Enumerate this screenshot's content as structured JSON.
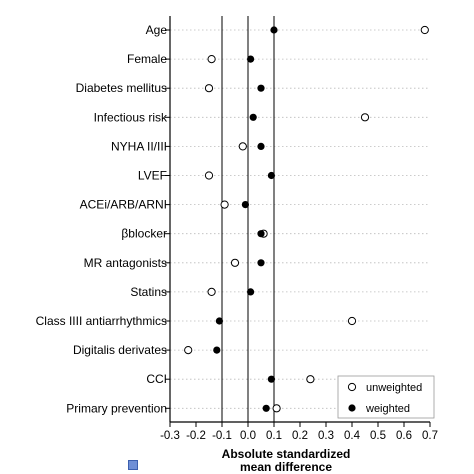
{
  "chart_data": {
    "type": "scatter",
    "categories": [
      "Age",
      "Female",
      "Diabetes mellitus",
      "Infectious risk",
      "NYHA II/III",
      "LVEF",
      "ACEi/ARB/ARNI",
      "βblocker",
      "MR antagonists",
      "Statins",
      "Class IIII antiarrhythmics",
      "Digitalis derivates",
      "CCI",
      "Primary prevention"
    ],
    "series": [
      {
        "name": "unweighted",
        "marker": "open-circle",
        "values": [
          0.68,
          -0.14,
          -0.15,
          0.45,
          -0.02,
          -0.15,
          -0.09,
          0.06,
          -0.05,
          -0.14,
          0.4,
          -0.23,
          0.24,
          0.11
        ]
      },
      {
        "name": "weighted",
        "marker": "filled-circle",
        "values": [
          0.1,
          0.01,
          0.05,
          0.02,
          0.05,
          0.09,
          -0.01,
          0.05,
          0.05,
          0.01,
          -0.11,
          -0.12,
          0.09,
          0.07
        ]
      }
    ],
    "xlim": [
      -0.3,
      0.7
    ],
    "xticks": [
      "-0.3",
      "-0.2",
      "-0.1",
      "0.0",
      "0.1",
      "0.2",
      "0.3",
      "0.4",
      "0.5",
      "0.6",
      "0.7"
    ],
    "reference_lines": [
      -0.1,
      0,
      0.1
    ],
    "xlabel_lines": [
      "Absolute standardized",
      "mean difference"
    ],
    "legend_placement": "bottom-right",
    "row_guides": "dotted",
    "colors": {
      "marker": "#000000",
      "guide": "#bbbbbb",
      "axis": "#000000"
    }
  }
}
